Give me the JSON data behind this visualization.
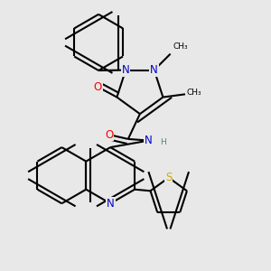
{
  "background_color": "#e8e8e8",
  "bond_color": "#000000",
  "bond_width": 1.5,
  "atom_colors": {
    "N": "#0000cc",
    "O": "#ff0000",
    "S": "#ccaa00",
    "H": "#448888",
    "C": "#000000"
  },
  "font_size_atom": 8.5,
  "figure_size": [
    3.0,
    3.0
  ],
  "dpi": 100
}
